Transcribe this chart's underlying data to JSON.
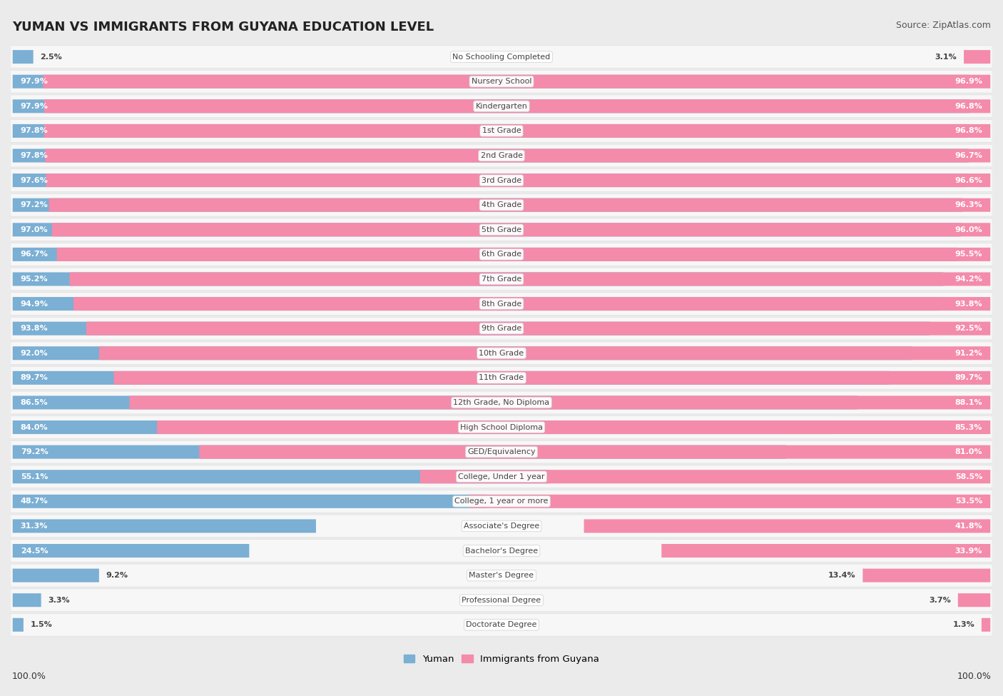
{
  "title": "YUMAN VS IMMIGRANTS FROM GUYANA EDUCATION LEVEL",
  "source": "Source: ZipAtlas.com",
  "categories": [
    "No Schooling Completed",
    "Nursery School",
    "Kindergarten",
    "1st Grade",
    "2nd Grade",
    "3rd Grade",
    "4th Grade",
    "5th Grade",
    "6th Grade",
    "7th Grade",
    "8th Grade",
    "9th Grade",
    "10th Grade",
    "11th Grade",
    "12th Grade, No Diploma",
    "High School Diploma",
    "GED/Equivalency",
    "College, Under 1 year",
    "College, 1 year or more",
    "Associate's Degree",
    "Bachelor's Degree",
    "Master's Degree",
    "Professional Degree",
    "Doctorate Degree"
  ],
  "yuman": [
    2.5,
    97.9,
    97.9,
    97.8,
    97.8,
    97.6,
    97.2,
    97.0,
    96.7,
    95.2,
    94.9,
    93.8,
    92.0,
    89.7,
    86.5,
    84.0,
    79.2,
    55.1,
    48.7,
    31.3,
    24.5,
    9.2,
    3.3,
    1.5
  ],
  "guyana": [
    3.1,
    96.9,
    96.8,
    96.8,
    96.7,
    96.6,
    96.3,
    96.0,
    95.5,
    94.2,
    93.8,
    92.5,
    91.2,
    89.7,
    88.1,
    85.3,
    81.0,
    58.5,
    53.5,
    41.8,
    33.9,
    13.4,
    3.7,
    1.3
  ],
  "yuman_color": "#7bafd4",
  "guyana_color": "#f48bab",
  "bg_color": "#ebebeb",
  "row_bg": "#f7f7f7",
  "row_border": "#e0e0e0",
  "label_color_dark": "#444444",
  "label_color_white": "#ffffff",
  "bottom_labels": [
    "100.0%",
    "100.0%"
  ],
  "legend_yuman": "Yuman",
  "legend_guyana": "Immigrants from Guyana",
  "title_fontsize": 13,
  "source_fontsize": 9,
  "value_fontsize": 8,
  "cat_fontsize": 8
}
